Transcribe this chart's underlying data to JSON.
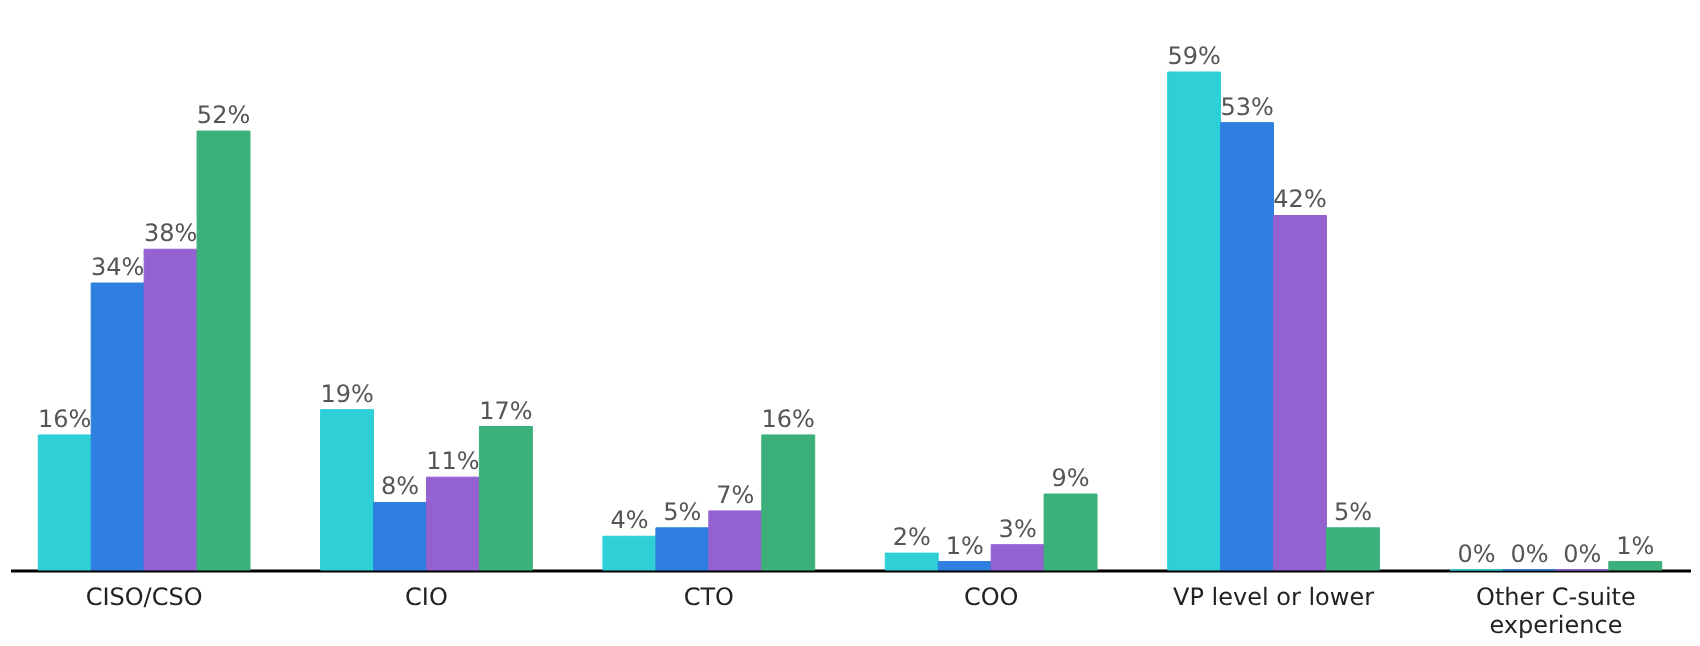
{
  "chart_data": {
    "type": "bar",
    "categories": [
      "CISO/CSO",
      "CIO",
      "CTO",
      "COO",
      "VP level or lower",
      "Other C-suite experience"
    ],
    "series": [
      {
        "color": "#2ecfd6",
        "values": [
          16,
          19,
          4,
          2,
          59,
          0
        ],
        "value_labels": [
          "16%",
          "19%",
          "4%",
          "2%",
          "59%",
          "0%"
        ]
      },
      {
        "color": "#2f7fe0",
        "values": [
          34,
          8,
          5,
          1,
          53,
          0
        ],
        "value_labels": [
          "34%",
          "8%",
          "5%",
          "1%",
          "53%",
          "0%"
        ]
      },
      {
        "color": "#9461d0",
        "values": [
          38,
          11,
          7,
          3,
          42,
          0
        ],
        "value_labels": [
          "38%",
          "11%",
          "7%",
          "3%",
          "42%",
          "0%"
        ]
      },
      {
        "color": "#3cb07a",
        "values": [
          52,
          17,
          16,
          9,
          5,
          1
        ],
        "value_labels": [
          "52%",
          "17%",
          "16%",
          "9%",
          "5%",
          "1%"
        ]
      }
    ],
    "grid": false,
    "legend": false
  }
}
